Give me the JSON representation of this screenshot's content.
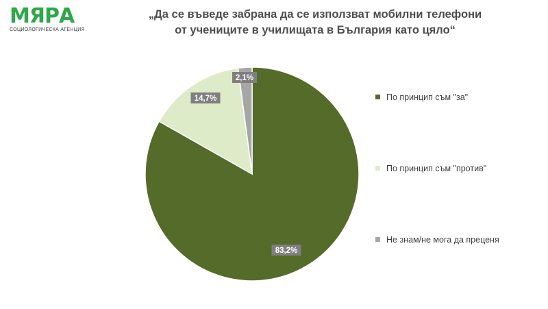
{
  "logo": {
    "wordmark": "МЯРА",
    "tagline": "СОЦИОЛОГИЧЕСКА АГЕНЦИЯ"
  },
  "colors": {
    "brand": "#2ea84a",
    "label_bg": "#7f7f7f",
    "label_text": "#ffffff"
  },
  "chart_data": {
    "type": "pie",
    "title_line1": "„Да се въведе забрана да се използват мобилни телефони",
    "title_line2": "от учениците в училищата в България като цяло“",
    "slices": [
      {
        "label": "По принцип съм \"за\"",
        "value": 83.2,
        "display": "83,2%",
        "color": "#556b2a"
      },
      {
        "label": "По принцип съм \"против\"",
        "value": 14.7,
        "display": "14,7%",
        "color": "#deebc8"
      },
      {
        "label": "Не знам/не мога да преценя",
        "value": 2.1,
        "display": "2,1%",
        "color": "#a6a6a6"
      }
    ],
    "start_angle_deg": 0,
    "direction": "clockwise",
    "legend_position": "right"
  }
}
